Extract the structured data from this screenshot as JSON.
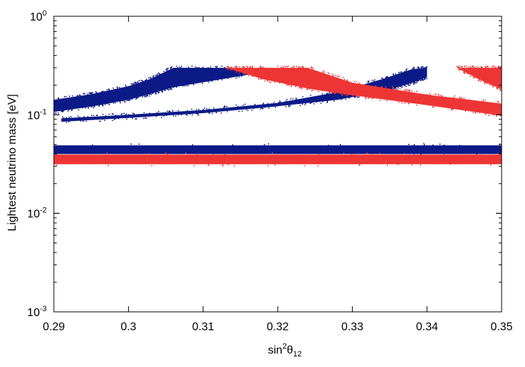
{
  "chart_data": {
    "type": "scatter",
    "title": "",
    "xlabel": {
      "base": "sin",
      "sup": "2",
      "greek": "θ",
      "sub": "12"
    },
    "ylabel": "Lightest neutrino mass [eV]",
    "xlim": [
      0.29,
      0.35
    ],
    "ylim": [
      0.001,
      1
    ],
    "yscale": "log",
    "grid": false,
    "x_ticks": [
      "0.29",
      "0.3",
      "0.31",
      "0.32",
      "0.33",
      "0.34",
      "0.35"
    ],
    "y_ticks": [
      {
        "base": "10",
        "exp": "-3",
        "value": 0.001
      },
      {
        "base": "10",
        "exp": "-2",
        "value": 0.01
      },
      {
        "base": "10",
        "exp": "-1",
        "value": 0.1
      },
      {
        "base": "10",
        "exp": "0",
        "value": 1
      }
    ],
    "colors": {
      "blue": "#0b1a86",
      "red": "#ee3535"
    },
    "regions": [
      {
        "color": "blue",
        "kind": "band",
        "x": [
          0.29,
          0.35
        ],
        "y_low": [
          0.04,
          0.04
        ],
        "y_high": [
          0.049,
          0.049
        ]
      },
      {
        "color": "red",
        "kind": "band",
        "x": [
          0.29,
          0.35
        ],
        "y_low": [
          0.0315,
          0.0315
        ],
        "y_high": [
          0.0395,
          0.0395
        ]
      },
      {
        "color": "blue",
        "kind": "band",
        "x": [
          0.29,
          0.295,
          0.3,
          0.303,
          0.306,
          0.316
        ],
        "y_low": [
          0.107,
          0.121,
          0.142,
          0.163,
          0.19,
          0.255
        ],
        "y_high": [
          0.142,
          0.162,
          0.195,
          0.232,
          0.3,
          0.3
        ]
      },
      {
        "color": "blue",
        "kind": "band",
        "x": [
          0.291,
          0.3,
          0.31,
          0.32,
          0.328,
          0.334,
          0.338,
          0.34
        ],
        "y_low": [
          0.085,
          0.093,
          0.104,
          0.122,
          0.142,
          0.172,
          0.21,
          0.24
        ],
        "y_high": [
          0.092,
          0.1,
          0.112,
          0.132,
          0.17,
          0.23,
          0.29,
          0.3
        ]
      },
      {
        "color": "red",
        "kind": "band",
        "x": [
          0.313,
          0.318,
          0.324,
          0.33,
          0.34,
          0.35
        ],
        "y_low": [
          0.3,
          0.23,
          0.185,
          0.158,
          0.125,
          0.098
        ],
        "y_high": [
          0.3,
          0.3,
          0.3,
          0.212,
          0.16,
          0.13
        ]
      },
      {
        "color": "red",
        "kind": "band",
        "x": [
          0.344,
          0.347,
          0.35
        ],
        "y_low": [
          0.3,
          0.228,
          0.182
        ],
        "y_high": [
          0.3,
          0.3,
          0.3
        ]
      }
    ]
  }
}
